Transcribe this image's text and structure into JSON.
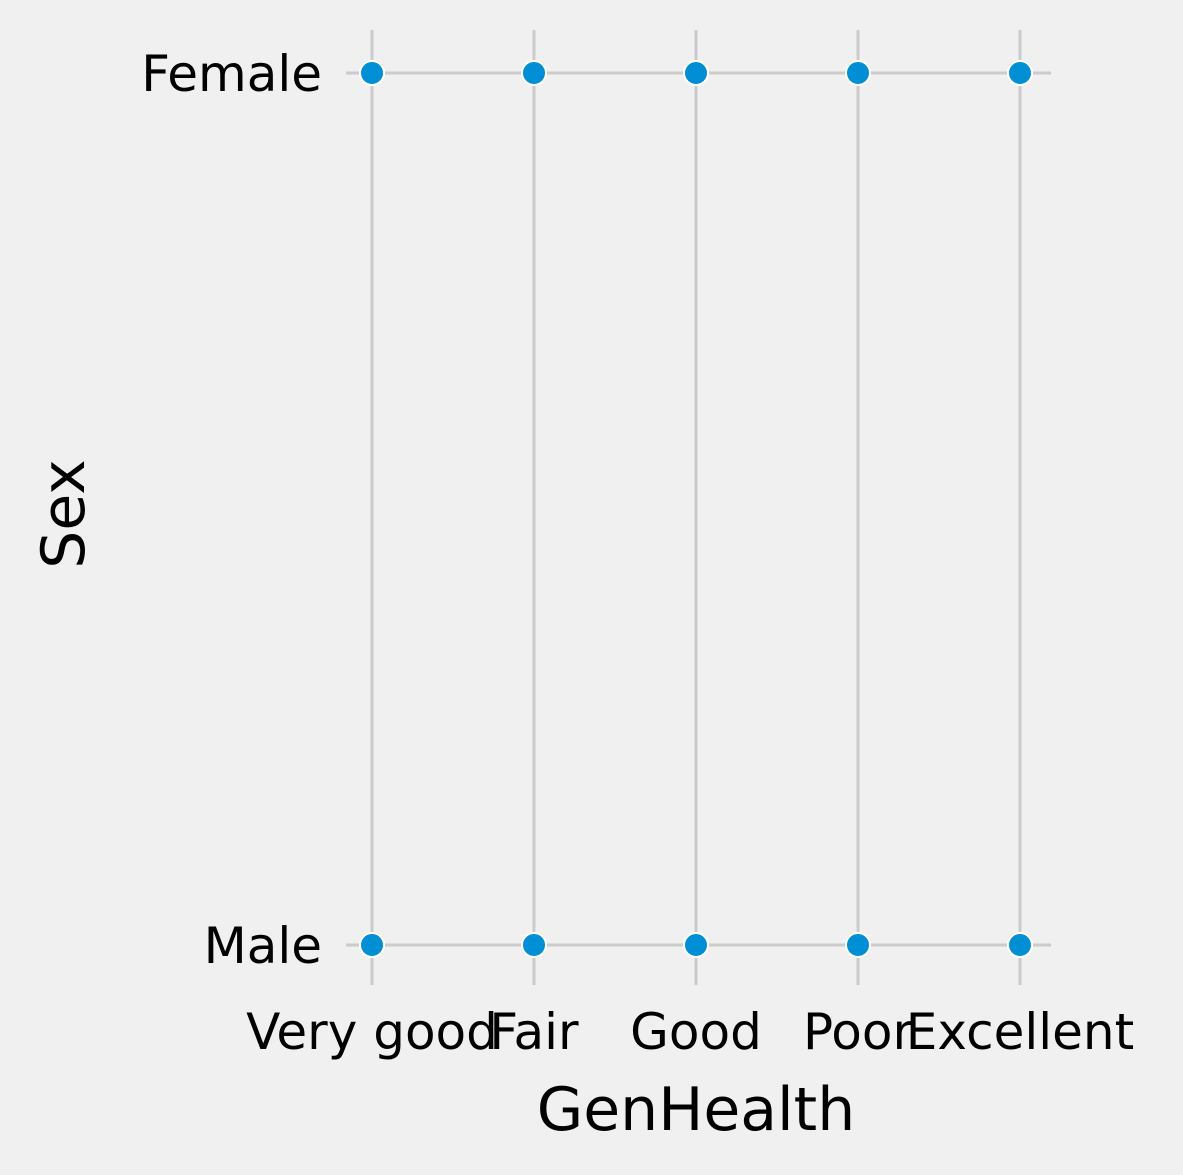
{
  "chart_data": {
    "type": "scatter",
    "title": "",
    "xlabel": "GenHealth",
    "ylabel": "Sex",
    "x_categories": [
      "Very good",
      "Fair",
      "Good",
      "Poor",
      "Excellent"
    ],
    "y_categories": [
      "Male",
      "Female"
    ],
    "points": [
      {
        "x": "Very good",
        "y": "Female"
      },
      {
        "x": "Fair",
        "y": "Female"
      },
      {
        "x": "Good",
        "y": "Female"
      },
      {
        "x": "Poor",
        "y": "Female"
      },
      {
        "x": "Excellent",
        "y": "Female"
      },
      {
        "x": "Very good",
        "y": "Male"
      },
      {
        "x": "Fair",
        "y": "Male"
      },
      {
        "x": "Good",
        "y": "Male"
      },
      {
        "x": "Poor",
        "y": "Male"
      },
      {
        "x": "Excellent",
        "y": "Male"
      }
    ],
    "grid": true,
    "colors": {
      "background": "#f0f0f0",
      "grid": "#cbcbcb",
      "point": "#008fd5",
      "point_edge": "#ffffff",
      "text": "#000000"
    }
  }
}
